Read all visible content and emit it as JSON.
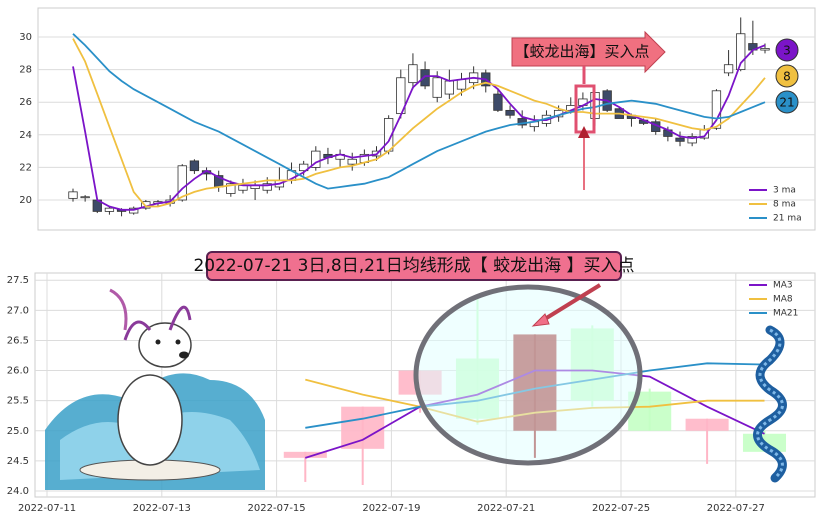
{
  "chart_data": [
    {
      "type": "candlestick",
      "open": [
        20.1,
        20.2,
        20.0,
        19.3,
        19.4,
        19.2,
        19.5,
        19.8,
        19.8,
        20.0,
        22.4,
        21.8,
        21.5,
        20.4,
        20.6,
        20.7,
        20.6,
        20.8,
        21.2,
        21.8,
        22.0,
        22.8,
        22.5,
        22.2,
        22.3,
        22.7,
        23.0,
        25.3,
        27.2,
        28.0,
        26.3,
        26.5,
        26.8,
        27.2,
        27.8,
        26.5,
        25.5,
        25.0,
        24.5,
        24.7,
        25.1,
        25.5,
        25.8,
        25.0,
        26.7,
        25.6,
        25.2,
        24.9,
        24.8,
        24.3,
        23.8,
        23.5,
        23.8,
        24.4,
        27.8,
        28.0,
        29.6,
        29.2
      ],
      "close": [
        20.5,
        20.2,
        19.3,
        19.5,
        19.3,
        19.5,
        19.9,
        19.9,
        20.0,
        22.1,
        21.8,
        21.6,
        20.8,
        21.0,
        20.9,
        20.9,
        21.0,
        21.2,
        21.8,
        22.2,
        23.0,
        22.6,
        22.8,
        22.5,
        22.8,
        23.0,
        25.0,
        27.5,
        28.3,
        27.0,
        27.5,
        27.3,
        27.4,
        27.8,
        27.0,
        25.5,
        25.2,
        24.6,
        24.8,
        25.2,
        25.5,
        25.8,
        26.2,
        26.6,
        25.5,
        25.0,
        25.0,
        24.7,
        24.2,
        23.9,
        23.6,
        23.9,
        24.3,
        26.7,
        28.3,
        30.2,
        29.2,
        29.3
      ],
      "high": [
        20.7,
        20.3,
        20.1,
        19.6,
        19.5,
        19.6,
        20.0,
        20.0,
        20.3,
        22.2,
        22.5,
        22.0,
        21.8,
        21.2,
        21.3,
        21.2,
        21.4,
        22.0,
        22.3,
        22.4,
        23.3,
        23.2,
        23.1,
        22.9,
        23.1,
        23.3,
        25.2,
        28.0,
        29.0,
        28.5,
        27.9,
        28.0,
        27.8,
        28.2,
        28.0,
        26.8,
        25.8,
        25.5,
        25.2,
        25.5,
        25.8,
        26.3,
        26.6,
        26.6,
        26.8,
        25.7,
        25.3,
        25.0,
        25.0,
        24.5,
        24.2,
        24.1,
        24.6,
        26.8,
        29.2,
        31.2,
        31.0,
        29.6
      ],
      "low": [
        19.9,
        19.9,
        19.2,
        19.1,
        19.0,
        19.1,
        19.4,
        19.6,
        19.6,
        19.9,
        21.6,
        21.2,
        20.5,
        20.2,
        20.4,
        20.0,
        20.4,
        20.6,
        21.0,
        21.5,
        21.8,
        22.2,
        22.0,
        21.8,
        22.1,
        22.4,
        22.8,
        25.0,
        26.8,
        26.8,
        26.0,
        26.2,
        26.4,
        26.8,
        26.6,
        25.4,
        25.0,
        24.4,
        24.2,
        24.5,
        24.8,
        25.3,
        25.5,
        24.55,
        25.4,
        25.0,
        24.5,
        24.6,
        24.0,
        23.6,
        23.3,
        23.3,
        23.7,
        24.3,
        27.6,
        27.9,
        28.9,
        29.0
      ],
      "up_color": "#ffffff",
      "down_color": "#3d4a68",
      "edge_color": "#333333",
      "series": [
        {
          "name": "3 ma",
          "color": "#7b14c8",
          "values": [
            28.2,
            24.2,
            20.0,
            19.6,
            19.4,
            19.4,
            19.6,
            19.8,
            19.9,
            20.7,
            21.3,
            21.8,
            21.4,
            21.1,
            20.9,
            20.9,
            20.9,
            21.0,
            21.3,
            21.7,
            22.3,
            22.6,
            22.8,
            22.6,
            22.7,
            22.8,
            23.6,
            25.2,
            26.9,
            27.6,
            27.6,
            27.3,
            27.4,
            27.5,
            27.4,
            26.8,
            25.9,
            25.1,
            24.9,
            24.9,
            25.2,
            25.5,
            25.8,
            26.2,
            26.1,
            25.7,
            25.2,
            24.9,
            24.6,
            24.3,
            23.9,
            23.8,
            23.9,
            24.9,
            26.4,
            28.4,
            29.2,
            29.5
          ]
        },
        {
          "name": "8 ma",
          "color": "#f0c040",
          "values": [
            29.9,
            28.5,
            26.5,
            24.5,
            22.5,
            20.5,
            19.6,
            19.6,
            19.8,
            20.2,
            20.5,
            20.7,
            20.8,
            20.9,
            21.0,
            21.1,
            21.2,
            21.2,
            21.2,
            21.3,
            21.6,
            21.8,
            22.0,
            22.1,
            22.3,
            22.5,
            23.0,
            23.7,
            24.4,
            25.0,
            25.6,
            26.1,
            26.6,
            27.0,
            27.2,
            27.0,
            26.7,
            26.4,
            26.1,
            25.9,
            25.6,
            25.4,
            25.4,
            25.3,
            25.3,
            25.3,
            25.2,
            25.1,
            25.0,
            24.8,
            24.6,
            24.4,
            24.3,
            24.5,
            25.0,
            25.8,
            26.6,
            27.5
          ]
        },
        {
          "name": "21 ma",
          "color": "#2a90c8",
          "values": [
            30.2,
            29.5,
            28.7,
            27.9,
            27.3,
            26.8,
            26.4,
            26.0,
            25.6,
            25.2,
            24.8,
            24.5,
            24.2,
            23.8,
            23.4,
            23.0,
            22.6,
            22.2,
            21.8,
            21.4,
            21.0,
            20.7,
            20.8,
            20.9,
            21.0,
            21.2,
            21.4,
            21.8,
            22.2,
            22.6,
            23.0,
            23.3,
            23.6,
            23.9,
            24.2,
            24.4,
            24.6,
            24.7,
            24.8,
            25.0,
            25.2,
            25.4,
            25.6,
            25.7,
            25.9,
            26.0,
            26.1,
            26.0,
            25.9,
            25.7,
            25.5,
            25.3,
            25.1,
            25.0,
            25.1,
            25.4,
            25.7,
            26.0
          ]
        }
      ],
      "end_labels": [
        "3",
        "8",
        "21"
      ],
      "annotation": "【蛟龙出海】买入点",
      "ylim": [
        18.16,
        31.78
      ],
      "yticks": [
        20,
        22,
        24,
        26,
        28,
        30
      ],
      "grid": true,
      "legend": "lower right"
    },
    {
      "type": "candlestick",
      "title": "2022-07-21 3日,8日,21日均线形成【 蛟龙出海 】买入点",
      "categories": [
        "2022-07-11",
        null,
        "2022-07-13",
        null,
        "2022-07-15",
        null,
        "2022-07-19",
        null,
        "2022-07-21",
        null,
        "2022-07-25",
        null,
        "2022-07-27"
      ],
      "open": [
        null,
        null,
        null,
        null,
        24.65,
        25.4,
        26.0,
        25.2,
        25.0,
        25.5,
        25.65,
        25.2,
        24.95
      ],
      "close": [
        null,
        null,
        null,
        null,
        24.55,
        24.7,
        25.6,
        26.2,
        26.6,
        26.7,
        25.0,
        25.0,
        24.65
      ],
      "high": [
        null,
        null,
        null,
        null,
        24.65,
        25.4,
        26.0,
        27.2,
        26.6,
        26.75,
        25.7,
        25.2,
        25.0
      ],
      "low": [
        null,
        null,
        null,
        null,
        24.15,
        24.1,
        25.3,
        25.1,
        24.55,
        25.4,
        25.0,
        24.45,
        24.65
      ],
      "colors": [
        null,
        null,
        null,
        null,
        "#ffb6c6",
        "#ffb6c6",
        "#ffb6c6",
        "#c4ffc4",
        "#a52a2a",
        "#c4ffc4",
        "#c4ffc4",
        "#ffb6c6",
        "#c4ffc4"
      ],
      "series": [
        {
          "name": "MA3",
          "color": "#7b14c8",
          "values": [
            null,
            null,
            null,
            null,
            24.55,
            24.85,
            25.4,
            25.6,
            26.0,
            26.0,
            25.9,
            25.4,
            24.95
          ]
        },
        {
          "name": "MA8",
          "color": "#f0c040",
          "values": [
            null,
            null,
            null,
            null,
            25.85,
            25.6,
            25.4,
            25.15,
            25.3,
            25.38,
            25.4,
            25.5,
            25.5
          ]
        },
        {
          "name": "MA21",
          "color": "#2a90c8",
          "values": [
            null,
            null,
            null,
            null,
            25.05,
            25.2,
            25.4,
            25.5,
            25.7,
            25.85,
            26.0,
            26.12,
            26.1
          ]
        }
      ],
      "ylim": [
        23.9,
        27.62
      ],
      "yticks": [
        {
          "value": 24,
          "label": "24.0"
        },
        24.5,
        {
          "value": 25,
          "label": "25.0"
        },
        25.5,
        {
          "value": 26,
          "label": "26.0"
        },
        26.5,
        {
          "value": 27,
          "label": "27.0"
        },
        27.5
      ],
      "grid": true,
      "legend": "upper right"
    }
  ]
}
